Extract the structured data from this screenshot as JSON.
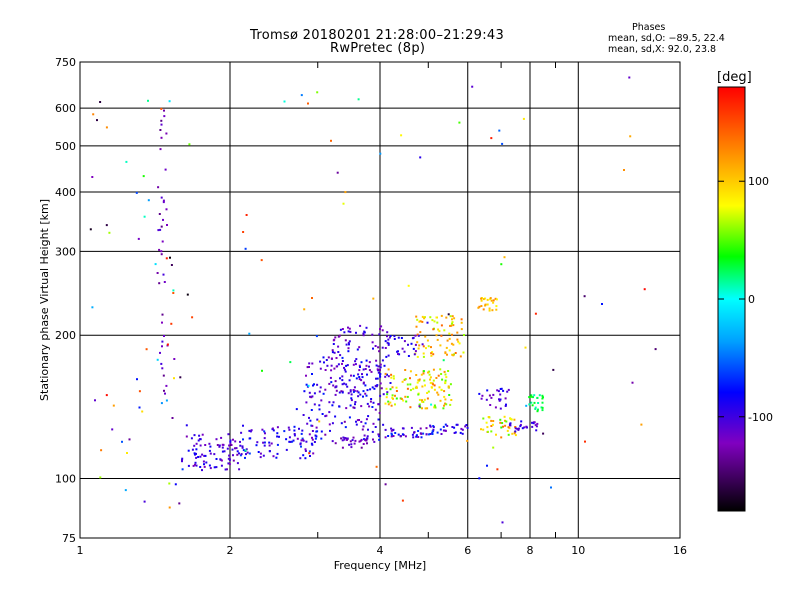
{
  "header": {
    "title_line1": "Tromsø 20180201 21:28:00–21:29:43",
    "title_line2": "RwPretec (8p)",
    "phases_title": "Phases",
    "phases_o": "mean, sd,O: −89.5, 22.4",
    "phases_x": "mean, sd,X:  92.0, 23.8"
  },
  "colorbar": {
    "unit": "[deg]",
    "range": [
      -180,
      180
    ],
    "ticks": [
      100,
      0,
      -100
    ]
  },
  "chart_data": {
    "type": "scatter",
    "xlabel": "Frequency [MHz]",
    "ylabel": "Stationary phase Virtual Height [km]",
    "xscale": "log",
    "yscale": "log",
    "xlim": [
      1,
      16
    ],
    "ylim": [
      75,
      750
    ],
    "xticks": [
      1,
      2,
      4,
      6,
      8,
      10,
      16
    ],
    "xtick_labels": [
      "1",
      "2",
      "4",
      "6",
      "8",
      "10",
      "16"
    ],
    "yticks": [
      75,
      100,
      200,
      300,
      400,
      500,
      600,
      750
    ],
    "ytick_labels": [
      "75",
      "100",
      "200",
      "300",
      "400",
      "500",
      "600",
      "750"
    ],
    "grid": true,
    "color_variable": "phase [deg]",
    "clusters": [
      {
        "f": [
          1.6,
          2.1
        ],
        "h": [
          104,
          124
        ],
        "phase": [
          -130,
          -80
        ],
        "n": 90
      },
      {
        "f": [
          2.1,
          3.0
        ],
        "h": [
          110,
          130
        ],
        "phase": [
          -120,
          -60
        ],
        "n": 90
      },
      {
        "f": [
          2.8,
          4.1
        ],
        "h": [
          120,
          180
        ],
        "phase": [
          -130,
          -70
        ],
        "n": 170
      },
      {
        "f": [
          3.2,
          4.2
        ],
        "h": [
          150,
          210
        ],
        "phase": [
          -130,
          -80
        ],
        "n": 110
      },
      {
        "f": [
          3.2,
          3.9
        ],
        "h": [
          116,
          122
        ],
        "phase": [
          -140,
          -100
        ],
        "n": 30
      },
      {
        "f": [
          4.1,
          5.1
        ],
        "h": [
          122,
          128
        ],
        "phase": [
          -130,
          -60
        ],
        "n": 40
      },
      {
        "f": [
          5.0,
          6.0
        ],
        "h": [
          124,
          130
        ],
        "phase": [
          -120,
          -60
        ],
        "n": 30
      },
      {
        "f": [
          4.1,
          5.6
        ],
        "h": [
          140,
          170
        ],
        "phase": [
          40,
          140
        ],
        "n": 120
      },
      {
        "f": [
          4.7,
          5.9
        ],
        "h": [
          180,
          220
        ],
        "phase": [
          60,
          140
        ],
        "n": 80
      },
      {
        "f": [
          4.1,
          4.9
        ],
        "h": [
          180,
          200
        ],
        "phase": [
          -120,
          -80
        ],
        "n": 30
      },
      {
        "f": [
          6.3,
          7.5
        ],
        "h": [
          122,
          135
        ],
        "phase": [
          40,
          140
        ],
        "n": 40
      },
      {
        "f": [
          7.2,
          8.3
        ],
        "h": [
          125,
          132
        ],
        "phase": [
          -120,
          -80
        ],
        "n": 25
      },
      {
        "f": [
          6.3,
          7.3
        ],
        "h": [
          140,
          155
        ],
        "phase": [
          -130,
          -80
        ],
        "n": 25
      },
      {
        "f": [
          6.3,
          6.9
        ],
        "h": [
          225,
          240
        ],
        "phase": [
          80,
          130
        ],
        "n": 25
      },
      {
        "f": [
          7.9,
          8.5
        ],
        "h": [
          138,
          150
        ],
        "phase": [
          10,
          40
        ],
        "n": 25
      },
      {
        "f": [
          1.43,
          1.5
        ],
        "h": [
          150,
          600
        ],
        "phase": [
          -140,
          -100
        ],
        "n": 40
      },
      {
        "f": [
          1.05,
          1.7
        ],
        "h": [
          80,
          700
        ],
        "phase": [
          -180,
          180
        ],
        "n": 60
      },
      {
        "f": [
          2.0,
          16.0
        ],
        "h": [
          80,
          700
        ],
        "phase": [
          -180,
          180
        ],
        "n": 70
      }
    ]
  }
}
